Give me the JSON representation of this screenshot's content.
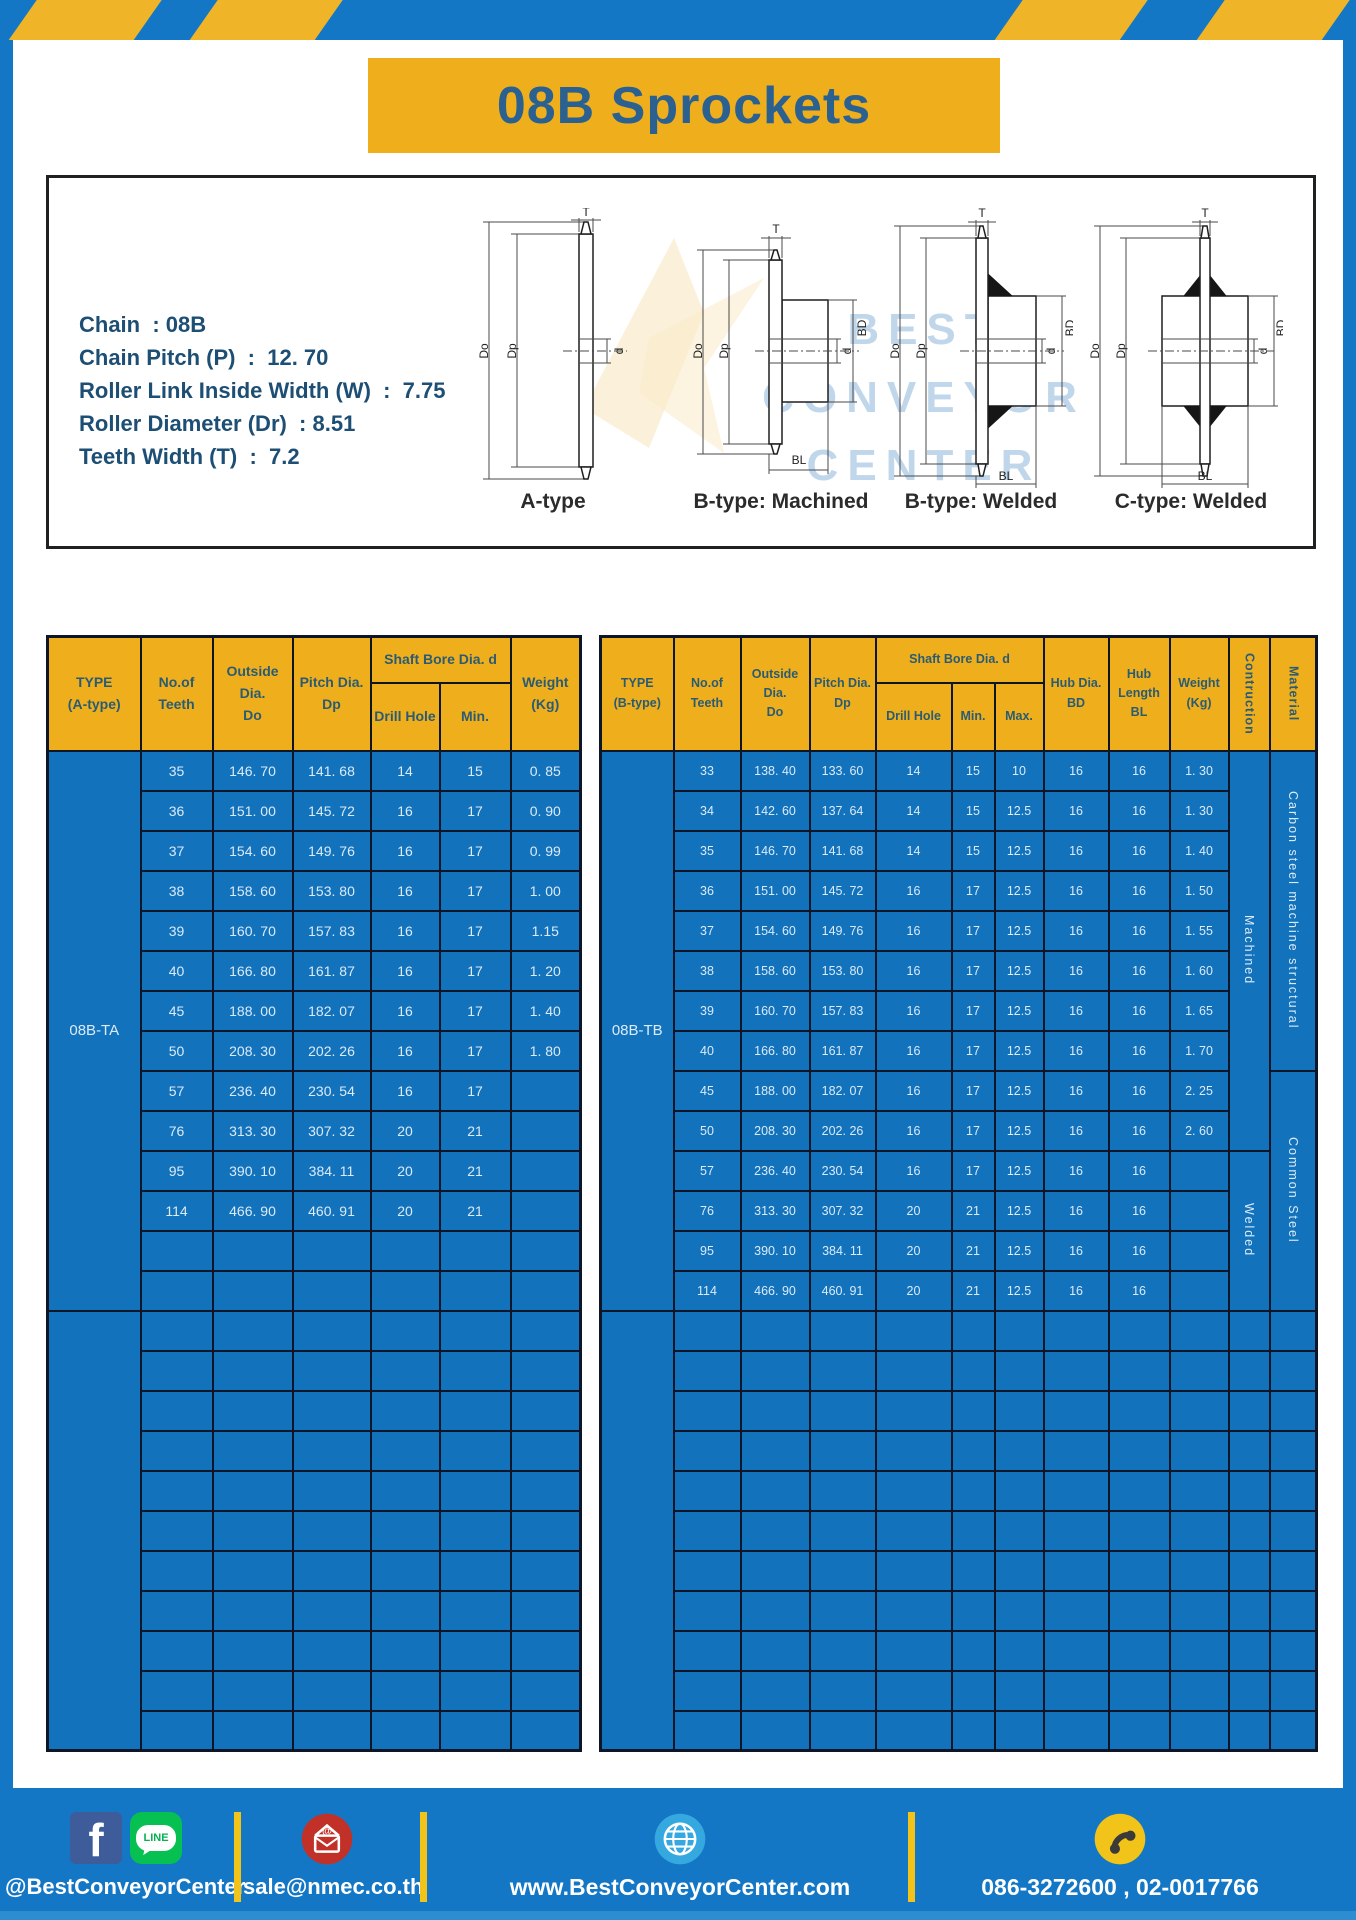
{
  "title": "08B Sprockets",
  "colors": {
    "frame_blue": "#1377C5",
    "table_blue": "#1272BC",
    "gold": "#EFAF1D",
    "line_dark": "#0D1626",
    "title_text": "#2A6191",
    "header_text": "#2B5B72",
    "cell_text": "#DCEBF8",
    "spec_text": "#1D4E74"
  },
  "specs": {
    "lines": [
      "Chain  : 08B",
      "Chain Pitch (P)  :  12. 70",
      "Roller Link Inside Width (W)  :  7.75",
      "Roller Diameter (Dr)  : 8.51",
      "Teeth Width (T)  :  7.2"
    ]
  },
  "diagrams": {
    "labels": [
      "A-type",
      "B-type: Machined",
      "B-type: Welded",
      "C-type: Welded"
    ],
    "dims": {
      "t": "T",
      "dia_o": "Do",
      "dia_p": "Dp",
      "d": "d",
      "bd": "BD",
      "bl": "BL"
    },
    "watermark": {
      "line1": "BEST",
      "line2": "CONVEYOR",
      "line3": "CENTER"
    }
  },
  "left_table": {
    "type_label": "08B-TA",
    "header": {
      "type": "TYPE\n(A-type)",
      "teeth": "No.of\nTeeth",
      "outside": "Outside\nDia.\nDo",
      "pitch": "Pitch Dia.\nDp",
      "shaft_group": "Shaft Bore Dia. d",
      "drill": "Drill Hole",
      "min": "Min.",
      "weight": "Weight\n(Kg)"
    },
    "rows": [
      [
        "35",
        "146. 70",
        "141. 68",
        "14",
        "15",
        "0. 85"
      ],
      [
        "36",
        "151. 00",
        "145. 72",
        "16",
        "17",
        "0. 90"
      ],
      [
        "37",
        "154. 60",
        "149. 76",
        "16",
        "17",
        "0. 99"
      ],
      [
        "38",
        "158. 60",
        "153. 80",
        "16",
        "17",
        "1. 00"
      ],
      [
        "39",
        "160. 70",
        "157. 83",
        "16",
        "17",
        "1.15"
      ],
      [
        "40",
        "166. 80",
        "161. 87",
        "16",
        "17",
        "1. 20"
      ],
      [
        "45",
        "188. 00",
        "182. 07",
        "16",
        "17",
        "1. 40"
      ],
      [
        "50",
        "208. 30",
        "202. 26",
        "16",
        "17",
        "1. 80"
      ],
      [
        "57",
        "236. 40",
        "230. 54",
        "16",
        "17",
        ""
      ],
      [
        "76",
        "313. 30",
        "307. 32",
        "20",
        "21",
        ""
      ],
      [
        "95",
        "390. 10",
        "384. 11",
        "20",
        "21",
        ""
      ],
      [
        "114",
        "466. 90",
        "460. 91",
        "20",
        "21",
        ""
      ]
    ],
    "type_span": 14,
    "empty_type_span": 11,
    "total_rows": 25
  },
  "right_table": {
    "type_label": "08B-TB",
    "header": {
      "type": "TYPE\n(B-type)",
      "teeth": "No.of\nTeeth",
      "outside": "Outside\nDia.\nDo",
      "pitch": "Pitch Dia.\nDp",
      "shaft_group": "Shaft Bore Dia. d",
      "drill": "Drill Hole",
      "min": "Min.",
      "max": "Max.",
      "hub_dia": "Hub Dia.\nBD",
      "hub_len": "Hub\nLength\nBL",
      "weight": "Weight\n(Kg)",
      "construction": "Contruction",
      "material": "Material"
    },
    "rows": [
      [
        "33",
        "138. 40",
        "133. 60",
        "14",
        "15",
        "10",
        "16",
        "16",
        "1. 30"
      ],
      [
        "34",
        "142. 60",
        "137. 64",
        "14",
        "15",
        "12.5",
        "16",
        "16",
        "1. 30"
      ],
      [
        "35",
        "146. 70",
        "141. 68",
        "14",
        "15",
        "12.5",
        "16",
        "16",
        "1. 40"
      ],
      [
        "36",
        "151. 00",
        "145. 72",
        "16",
        "17",
        "12.5",
        "16",
        "16",
        "1. 50"
      ],
      [
        "37",
        "154. 60",
        "149. 76",
        "16",
        "17",
        "12.5",
        "16",
        "16",
        "1. 55"
      ],
      [
        "38",
        "158. 60",
        "153. 80",
        "16",
        "17",
        "12.5",
        "16",
        "16",
        "1. 60"
      ],
      [
        "39",
        "160. 70",
        "157. 83",
        "16",
        "17",
        "12.5",
        "16",
        "16",
        "1. 65"
      ],
      [
        "40",
        "166. 80",
        "161. 87",
        "16",
        "17",
        "12.5",
        "16",
        "16",
        "1. 70"
      ],
      [
        "45",
        "188. 00",
        "182. 07",
        "16",
        "17",
        "12.5",
        "16",
        "16",
        "2. 25"
      ],
      [
        "50",
        "208. 30",
        "202. 26",
        "16",
        "17",
        "12.5",
        "16",
        "16",
        "2. 60"
      ],
      [
        "57",
        "236. 40",
        "230. 54",
        "16",
        "17",
        "12.5",
        "16",
        "16",
        ""
      ],
      [
        "76",
        "313. 30",
        "307. 32",
        "20",
        "21",
        "12.5",
        "16",
        "16",
        ""
      ],
      [
        "95",
        "390. 10",
        "384. 11",
        "20",
        "21",
        "12.5",
        "16",
        "16",
        ""
      ],
      [
        "114",
        "466. 90",
        "460. 91",
        "20",
        "21",
        "12.5",
        "16",
        "16",
        ""
      ]
    ],
    "construction_spans": [
      {
        "label": "Machined",
        "start": 0,
        "span": 10
      },
      {
        "label": "Welded",
        "start": 10,
        "span": 4
      }
    ],
    "material_spans": [
      {
        "label": "Carbon steel  machine structural",
        "start": 0,
        "span": 8
      },
      {
        "label": "Common  Steel",
        "start": 8,
        "span": 6
      }
    ],
    "type_span": 14,
    "empty_type_span": 11,
    "total_rows": 25
  },
  "footer": {
    "facebook_letter": "f",
    "line_label": "LINE",
    "handle": "@BestConveyorCenter",
    "email": "sale@nmec.co.th",
    "website": "www.BestConveyorCenter.com",
    "phone": "086-3272600 , 02-0017766"
  }
}
